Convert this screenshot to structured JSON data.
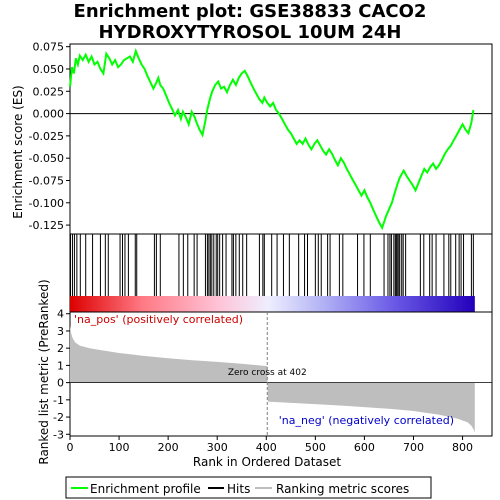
{
  "title_line1": "Enrichment plot: GSE38833 CACO2",
  "title_line2": "HYDROXYTYROSOL 10UM 24H",
  "chart_data": [
    {
      "type": "line",
      "name": "enrichment",
      "ylabel": "Enrichment score (ES)",
      "ylim": [
        -0.135,
        0.078
      ],
      "yticks": [
        0.075,
        0.05,
        0.025,
        0.0,
        -0.025,
        -0.05,
        -0.075,
        -0.1,
        -0.125
      ],
      "ytick_labels": [
        "0.075",
        "0.050",
        "0.025",
        "0.000",
        "-0.025",
        "-0.050",
        "-0.075",
        "-0.100",
        "-0.125"
      ],
      "series": [
        {
          "name": "Enrichment profile",
          "color": "#00ff00",
          "x": [
            0,
            4,
            8,
            12,
            16,
            20,
            26,
            32,
            38,
            44,
            50,
            56,
            62,
            68,
            74,
            80,
            86,
            92,
            98,
            104,
            110,
            116,
            122,
            128,
            134,
            140,
            146,
            152,
            158,
            164,
            170,
            176,
            180,
            184,
            190,
            196,
            202,
            208,
            214,
            220,
            226,
            230,
            236,
            242,
            248,
            254,
            258,
            264,
            270,
            276,
            280,
            286,
            290,
            296,
            302,
            308,
            314,
            320,
            326,
            332,
            338,
            344,
            350,
            356,
            362,
            368,
            374,
            380,
            386,
            392,
            396,
            402,
            408,
            414,
            420,
            426,
            432,
            438,
            444,
            450,
            456,
            462,
            468,
            474,
            480,
            486,
            492,
            498,
            504,
            510,
            516,
            522,
            528,
            534,
            540,
            546,
            552,
            558,
            564,
            570,
            576,
            582,
            588,
            594,
            600,
            606,
            612,
            618,
            624,
            630,
            636,
            640,
            644,
            648,
            652,
            656,
            660,
            664,
            668,
            672,
            676,
            680,
            686,
            692,
            698,
            704,
            710,
            716,
            722,
            728,
            734,
            740,
            746,
            752,
            758,
            764,
            770,
            776,
            782,
            788,
            794,
            800,
            806,
            812,
            818,
            822
          ],
          "y": [
            0.03,
            0.052,
            0.045,
            0.062,
            0.055,
            0.065,
            0.06,
            0.066,
            0.058,
            0.064,
            0.055,
            0.058,
            0.05,
            0.045,
            0.067,
            0.062,
            0.055,
            0.06,
            0.052,
            0.055,
            0.06,
            0.062,
            0.064,
            0.058,
            0.07,
            0.062,
            0.055,
            0.05,
            0.042,
            0.035,
            0.028,
            0.035,
            0.04,
            0.032,
            0.028,
            0.02,
            0.012,
            0.005,
            -0.002,
            0.004,
            -0.006,
            0.002,
            -0.004,
            -0.012,
            0.002,
            -0.004,
            -0.01,
            -0.018,
            -0.024,
            -0.008,
            0.005,
            0.018,
            0.025,
            0.032,
            0.036,
            0.028,
            0.03,
            0.024,
            0.032,
            0.038,
            0.032,
            0.04,
            0.045,
            0.048,
            0.042,
            0.035,
            0.028,
            0.022,
            0.016,
            0.012,
            0.018,
            0.012,
            0.008,
            0.012,
            0.004,
            0.0,
            -0.006,
            -0.012,
            -0.018,
            -0.022,
            -0.028,
            -0.034,
            -0.03,
            -0.034,
            -0.028,
            -0.035,
            -0.04,
            -0.034,
            -0.03,
            -0.036,
            -0.042,
            -0.046,
            -0.04,
            -0.045,
            -0.052,
            -0.058,
            -0.05,
            -0.055,
            -0.062,
            -0.068,
            -0.074,
            -0.08,
            -0.086,
            -0.092,
            -0.086,
            -0.094,
            -0.1,
            -0.108,
            -0.115,
            -0.122,
            -0.128,
            -0.122,
            -0.115,
            -0.11,
            -0.105,
            -0.1,
            -0.092,
            -0.085,
            -0.078,
            -0.072,
            -0.068,
            -0.064,
            -0.07,
            -0.075,
            -0.08,
            -0.086,
            -0.078,
            -0.07,
            -0.062,
            -0.066,
            -0.06,
            -0.056,
            -0.062,
            -0.058,
            -0.052,
            -0.045,
            -0.04,
            -0.036,
            -0.03,
            -0.024,
            -0.018,
            -0.012,
            -0.018,
            -0.022,
            -0.01,
            0.004
          ]
        }
      ],
      "hits": [
        1,
        5,
        9,
        14,
        21,
        32,
        46,
        62,
        72,
        78,
        102,
        107,
        112,
        119,
        133,
        136,
        172,
        176,
        184,
        222,
        231,
        240,
        253,
        259,
        276,
        280,
        283,
        286,
        289,
        293,
        298,
        301,
        305,
        311,
        318,
        330,
        333,
        338,
        345,
        352,
        360,
        386,
        393,
        396,
        411,
        422,
        435,
        447,
        466,
        478,
        484,
        500,
        506,
        512,
        525,
        530,
        549,
        556,
        586,
        599,
        612,
        640,
        648,
        652,
        655,
        660,
        663,
        665,
        667,
        670,
        672,
        676,
        679,
        684,
        714,
        721,
        733,
        738,
        746,
        762,
        772,
        776,
        786,
        793,
        797,
        802,
        818,
        822
      ],
      "xlim": [
        0,
        860
      ]
    },
    {
      "type": "area",
      "name": "ranked list metric",
      "ylabel": "Ranked list metric (PreRanked)",
      "xlabel": "Rank in Ordered Dataset",
      "xlim": [
        0,
        860
      ],
      "ylim": [
        -3.1,
        4.1
      ],
      "yticks": [
        4,
        3,
        2,
        1,
        0,
        -1,
        -2,
        -3
      ],
      "ytick_labels": [
        "4",
        "3",
        "2",
        "1",
        "0",
        "-1",
        "-2",
        "-3"
      ],
      "xticks": [
        0,
        100,
        200,
        300,
        400,
        500,
        600,
        700,
        800
      ],
      "xtick_labels": [
        "0",
        "100",
        "200",
        "300",
        "400",
        "500",
        "600",
        "700",
        "800"
      ],
      "series": [
        {
          "name": "Ranking metric scores",
          "color": "#bebebe",
          "x": [
            0,
            2,
            5,
            10,
            20,
            40,
            60,
            100,
            150,
            200,
            250,
            300,
            350,
            402,
            403,
            450,
            500,
            550,
            600,
            650,
            700,
            750,
            790,
            810,
            818,
            822,
            825
          ],
          "y": [
            3.3,
            2.9,
            2.6,
            2.35,
            2.15,
            2.0,
            1.9,
            1.72,
            1.55,
            1.42,
            1.3,
            1.2,
            1.1,
            0.96,
            -1.1,
            -1.18,
            -1.25,
            -1.33,
            -1.42,
            -1.52,
            -1.65,
            -1.85,
            -2.1,
            -2.3,
            -2.5,
            -2.7,
            -2.9
          ]
        }
      ],
      "zero_cross_label": "Zero cross at 402",
      "pos_label": "'na_pos' (positively correlated)",
      "neg_label": "'na_neg' (negatively correlated)"
    }
  ],
  "colors": {
    "enrichment_line": "#00ff00",
    "hits": "#000000",
    "zero_line": "#808080",
    "metric_fill": "#bebebe",
    "pos_label": "#cc0000",
    "neg_label": "#0000cc"
  },
  "legend": [
    {
      "label": "Enrichment profile",
      "color": "#00ff00",
      "style": "line"
    },
    {
      "label": "Hits",
      "color": "#000000",
      "style": "line"
    },
    {
      "label": "Ranking metric scores",
      "color": "#bebebe",
      "style": "line"
    }
  ]
}
